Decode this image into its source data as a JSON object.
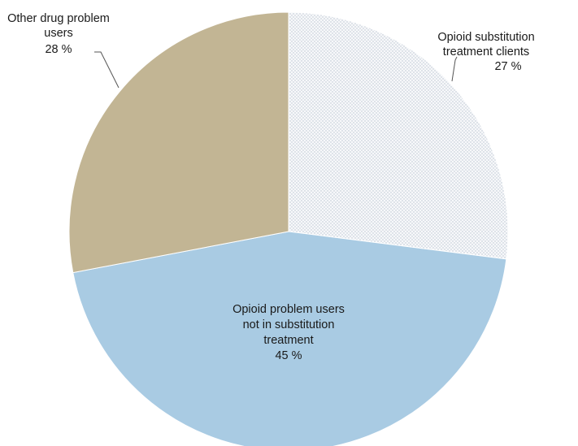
{
  "chart_data": {
    "type": "pie",
    "title": "",
    "start": "top",
    "direction": "clockwise",
    "slices": [
      {
        "label_lines": [
          "Opioid substitution",
          "treatment clients"
        ],
        "value_label": "27 %",
        "value": 27,
        "color": "#f4f6f8",
        "pattern": "dotted"
      },
      {
        "label_lines": [
          "Opioid problem users",
          "not in substitution",
          "treatment"
        ],
        "value_label": "45 %",
        "value": 45,
        "color": "#a9cbe3",
        "pattern": "none"
      },
      {
        "label_lines": [
          "Other drug problem",
          "users"
        ],
        "value_label": "28 %",
        "value": 28,
        "color": "#c2b594",
        "pattern": "none"
      }
    ]
  }
}
